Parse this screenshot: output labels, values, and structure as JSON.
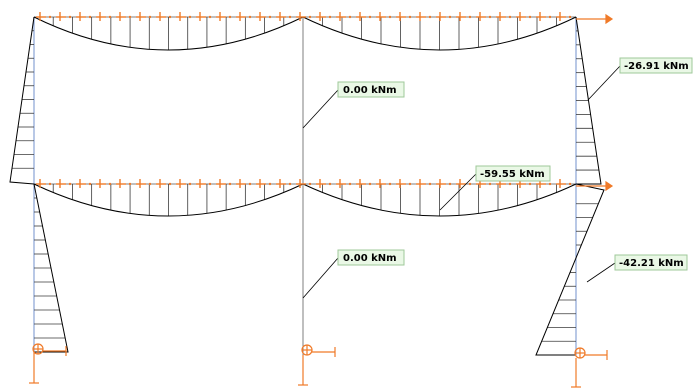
{
  "labels": {
    "col_mid_top": "0.00 kNm",
    "col_mid_bot": "0.00 kNm",
    "col_right_top": "-26.91 kNm",
    "beam_right_lower": "-59.55 kNm",
    "col_right_bot": "-42.21 kNm"
  },
  "colors": {
    "member": "#7f7f7f",
    "member_blue": "#8aa4d6",
    "diagram": "#000000",
    "hatch": "#3a3a3a",
    "load": "#f07a28",
    "support": "#f07a28",
    "label_fill": "#eaf8e6",
    "label_border": "#9fc89a"
  }
}
